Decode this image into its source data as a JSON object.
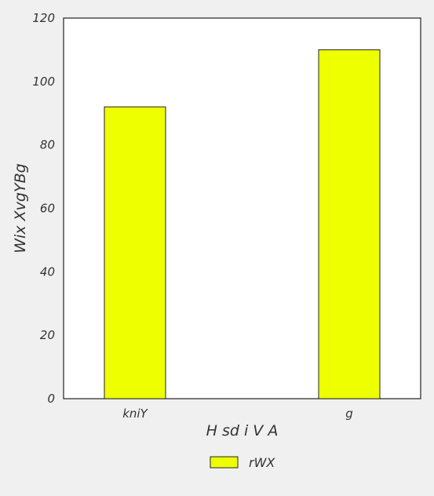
{
  "chart_data": {
    "type": "bar",
    "title": "",
    "xlabel": "H sd  i V A",
    "ylabel": "Wix  XvgYBg",
    "categories": [
      "kniY",
      "g"
    ],
    "series": [
      {
        "name": "rWX",
        "values": [
          92,
          110
        ],
        "color": "#eeff00"
      }
    ],
    "ylim": [
      0,
      120
    ],
    "yticks": [
      0,
      20,
      40,
      60,
      80,
      100,
      120
    ],
    "grid": false,
    "legend_position": "bottom-center",
    "colors": {
      "background": "#f0f0f0",
      "plot_area": "#ffffff",
      "bar_fill": "#eeff00",
      "bar_stroke": "#222222",
      "text": "#333333"
    }
  }
}
